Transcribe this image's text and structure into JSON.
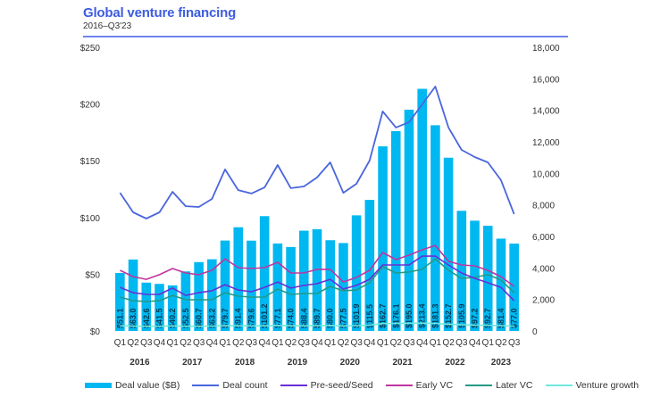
{
  "header": {
    "title": "Global venture financing",
    "subtitle": "2016–Q3'23"
  },
  "chart_data": {
    "type": "bar",
    "title": "Global venture financing",
    "subtitle": "2016–Q3'23",
    "xlabel": "",
    "ylabel_left": "Deal value ($B)",
    "ylabel_right": "Deal count",
    "ylim_left": [
      0,
      250
    ],
    "ylim_right": [
      0,
      18000
    ],
    "yticks_left": [
      "$0",
      "$50",
      "$100",
      "$150",
      "$200",
      "$250"
    ],
    "yticks_left_values": [
      0,
      50,
      100,
      150,
      200,
      250
    ],
    "yticks_right": [
      "0",
      "2,000",
      "4,000",
      "6,000",
      "8,000",
      "10,000",
      "12,000",
      "14,000",
      "16,000",
      "18,000"
    ],
    "yticks_right_values": [
      0,
      2000,
      4000,
      6000,
      8000,
      10000,
      12000,
      14000,
      16000,
      18000
    ],
    "grid": false,
    "legend_position": "bottom",
    "quarters": [
      "Q1",
      "Q2",
      "Q3",
      "Q4",
      "Q1",
      "Q2",
      "Q3",
      "Q4",
      "Q1",
      "Q2",
      "Q3",
      "Q4",
      "Q1",
      "Q2",
      "Q3",
      "Q4",
      "Q1",
      "Q2",
      "Q3",
      "Q4",
      "Q1",
      "Q2",
      "Q3",
      "Q4",
      "Q1",
      "Q2",
      "Q3",
      "Q4",
      "Q1",
      "Q2",
      "Q3"
    ],
    "years": [
      {
        "label": "2016",
        "start": 0,
        "count": 4
      },
      {
        "label": "2017",
        "start": 4,
        "count": 4
      },
      {
        "label": "2018",
        "start": 8,
        "count": 4
      },
      {
        "label": "2019",
        "start": 12,
        "count": 4
      },
      {
        "label": "2020",
        "start": 16,
        "count": 4
      },
      {
        "label": "2021",
        "start": 20,
        "count": 4
      },
      {
        "label": "2022",
        "start": 24,
        "count": 4
      },
      {
        "label": "2023",
        "start": 28,
        "count": 3
      }
    ],
    "series": [
      {
        "name": "Deal value ($B)",
        "kind": "bar",
        "axis": "left",
        "color": "#00b8f1",
        "values": [
          51.1,
          63.0,
          42.6,
          41.5,
          40.2,
          52.5,
          60.7,
          63.2,
          79.7,
          91.4,
          79.6,
          101.2,
          77.1,
          74.0,
          88.4,
          89.7,
          80.0,
          77.5,
          101.9,
          115.5,
          162.7,
          176.1,
          195.0,
          213.4,
          181.3,
          152.7,
          105.9,
          97.2,
          92.7,
          81.4,
          77.0
        ],
        "labels": [
          "$51.1",
          "$63.0",
          "$42.6",
          "$41.5",
          "$40.2",
          "$52.5",
          "$60.7",
          "$63.2",
          "$79.7",
          "$91.4",
          "$79.6",
          "$101.2",
          "$77.1",
          "$74.0",
          "$88.4",
          "$89.7",
          "$80.0",
          "$77.5",
          "$101.9",
          "$115.5",
          "$162.7",
          "$176.1",
          "$195.0",
          "$213.4",
          "$181.3",
          "$152.7",
          "$105.9",
          "$97.2",
          "$92.7",
          "$81.4",
          "$77.0"
        ]
      },
      {
        "name": "Deal count",
        "kind": "line",
        "axis": "right",
        "color": "#4a66dd",
        "values": [
          8770,
          7530,
          7130,
          7530,
          8830,
          7920,
          7870,
          8380,
          10250,
          8940,
          8720,
          9110,
          10530,
          9060,
          9170,
          9740,
          10700,
          8770,
          9340,
          10810,
          13930,
          12910,
          13250,
          14380,
          15510,
          12910,
          11490,
          11040,
          10700,
          9570,
          7420
        ]
      },
      {
        "name": "Pre-seed/Seed",
        "kind": "line",
        "axis": "right",
        "color": "#6a2fd6",
        "values": [
          2770,
          2430,
          2320,
          2320,
          2720,
          2260,
          2430,
          2550,
          2940,
          2600,
          2490,
          2770,
          3110,
          2720,
          2890,
          3000,
          3280,
          2660,
          2890,
          3280,
          4190,
          4190,
          4190,
          4750,
          4750,
          4190,
          3680,
          3340,
          3060,
          2770,
          1920
        ]
      },
      {
        "name": "Early VC",
        "kind": "line",
        "axis": "right",
        "color": "#c0359f",
        "values": [
          3850,
          3450,
          3280,
          3570,
          3960,
          3680,
          3570,
          3850,
          4580,
          4020,
          3960,
          4020,
          4360,
          3680,
          3680,
          3910,
          3910,
          3110,
          3400,
          3850,
          4980,
          4530,
          4810,
          5150,
          5430,
          4420,
          4190,
          4130,
          3850,
          3450,
          2830
        ]
      },
      {
        "name": "Later VC",
        "kind": "line",
        "axis": "right",
        "color": "#249a86",
        "values": [
          2150,
          1920,
          1870,
          1920,
          2260,
          1980,
          1980,
          1980,
          2430,
          2210,
          2150,
          2150,
          2660,
          2320,
          2380,
          2380,
          2830,
          2550,
          2600,
          3060,
          4080,
          3680,
          3740,
          3910,
          4580,
          3850,
          3340,
          3400,
          3570,
          3230,
          2430
        ]
      },
      {
        "name": "Venture growth",
        "kind": "line",
        "axis": "right",
        "color": "#6fe8de",
        "values": [
          330,
          310,
          300,
          300,
          320,
          300,
          300,
          310,
          340,
          330,
          320,
          330,
          350,
          330,
          330,
          340,
          350,
          320,
          340,
          370,
          470,
          480,
          490,
          500,
          480,
          430,
          390,
          370,
          360,
          340,
          300
        ]
      }
    ]
  },
  "legend": [
    {
      "label": "Deal value ($B)",
      "type": "bar",
      "color": "#00b8f1"
    },
    {
      "label": "Deal count",
      "type": "line",
      "color": "#4a66dd"
    },
    {
      "label": "Pre-seed/Seed",
      "type": "line",
      "color": "#6a2fd6"
    },
    {
      "label": "Early VC",
      "type": "line",
      "color": "#c0359f"
    },
    {
      "label": "Later VC",
      "type": "line",
      "color": "#249a86"
    },
    {
      "label": "Venture growth",
      "type": "line",
      "color": "#6fe8de"
    }
  ]
}
